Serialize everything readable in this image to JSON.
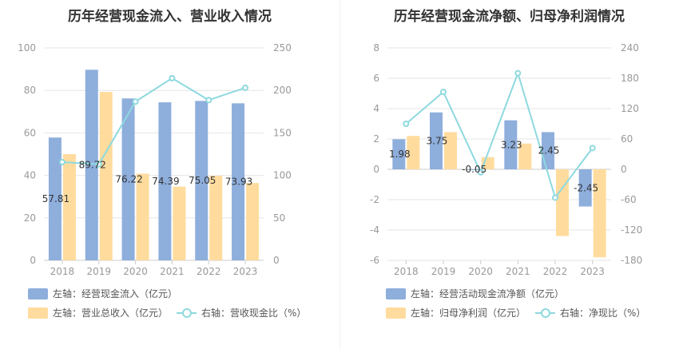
{
  "colors": {
    "bar1": "#8eaedc",
    "bar2": "#ffdc9e",
    "line": "#8ed9df",
    "grid": "#e6e6e6",
    "axis": "#999999",
    "label": "#333333"
  },
  "chart_data": [
    {
      "type": "bar",
      "title": "历年经营现金流入、营业收入情况",
      "categories": [
        "2018",
        "2019",
        "2020",
        "2021",
        "2022",
        "2023"
      ],
      "left_axis": {
        "ylim": [
          0,
          100
        ],
        "ticks": [
          "0",
          "20",
          "40",
          "60",
          "80",
          "100"
        ]
      },
      "right_axis": {
        "ylim": [
          0,
          250
        ],
        "ticks": [
          "0",
          "50",
          "100",
          "150",
          "200",
          "250"
        ]
      },
      "series": [
        {
          "name": "左轴：经营现金流入（亿元）",
          "axis": "left",
          "kind": "bar",
          "values": [
            57.81,
            89.72,
            76.22,
            74.39,
            75.05,
            73.93
          ],
          "labels": [
            "57.81",
            "89.72",
            "76.22",
            "74.39",
            "75.05",
            "73.93"
          ]
        },
        {
          "name": "左轴：营业总收入（亿元）",
          "axis": "left",
          "kind": "bar",
          "values": [
            50.0,
            79.3,
            40.8,
            34.7,
            39.8,
            36.4
          ]
        },
        {
          "name": "右轴：营收现金比（%）",
          "axis": "right",
          "kind": "line",
          "values": [
            115.6,
            113.1,
            186.8,
            214.4,
            188.6,
            203.1
          ]
        }
      ]
    },
    {
      "type": "bar",
      "title": "历年经营现金流净额、归母净利润情况",
      "categories": [
        "2018",
        "2019",
        "2020",
        "2021",
        "2022",
        "2023"
      ],
      "left_axis": {
        "ylim": [
          -6,
          8
        ],
        "ticks": [
          "-6",
          "-4",
          "-2",
          "0",
          "2",
          "4",
          "6",
          "8"
        ]
      },
      "right_axis": {
        "ylim": [
          -180,
          240
        ],
        "ticks": [
          "-180",
          "-120",
          "-60",
          "0",
          "60",
          "120",
          "180",
          "240"
        ]
      },
      "series": [
        {
          "name": "左轴：经营活动现金流净额（亿元）",
          "axis": "left",
          "kind": "bar",
          "values": [
            1.98,
            3.75,
            -0.05,
            3.23,
            2.45,
            -2.45
          ],
          "labels": [
            "1.98",
            "3.75",
            "-0.05",
            "3.23",
            "2.45",
            "-2.45"
          ]
        },
        {
          "name": "左轴：归母净利润（亿元）",
          "axis": "left",
          "kind": "bar",
          "values": [
            2.2,
            2.45,
            0.8,
            1.7,
            -4.4,
            -5.8
          ]
        },
        {
          "name": "右轴：净现比（%）",
          "axis": "right",
          "kind": "line",
          "values": [
            90,
            153,
            -6,
            190,
            -56,
            42
          ]
        }
      ]
    }
  ]
}
